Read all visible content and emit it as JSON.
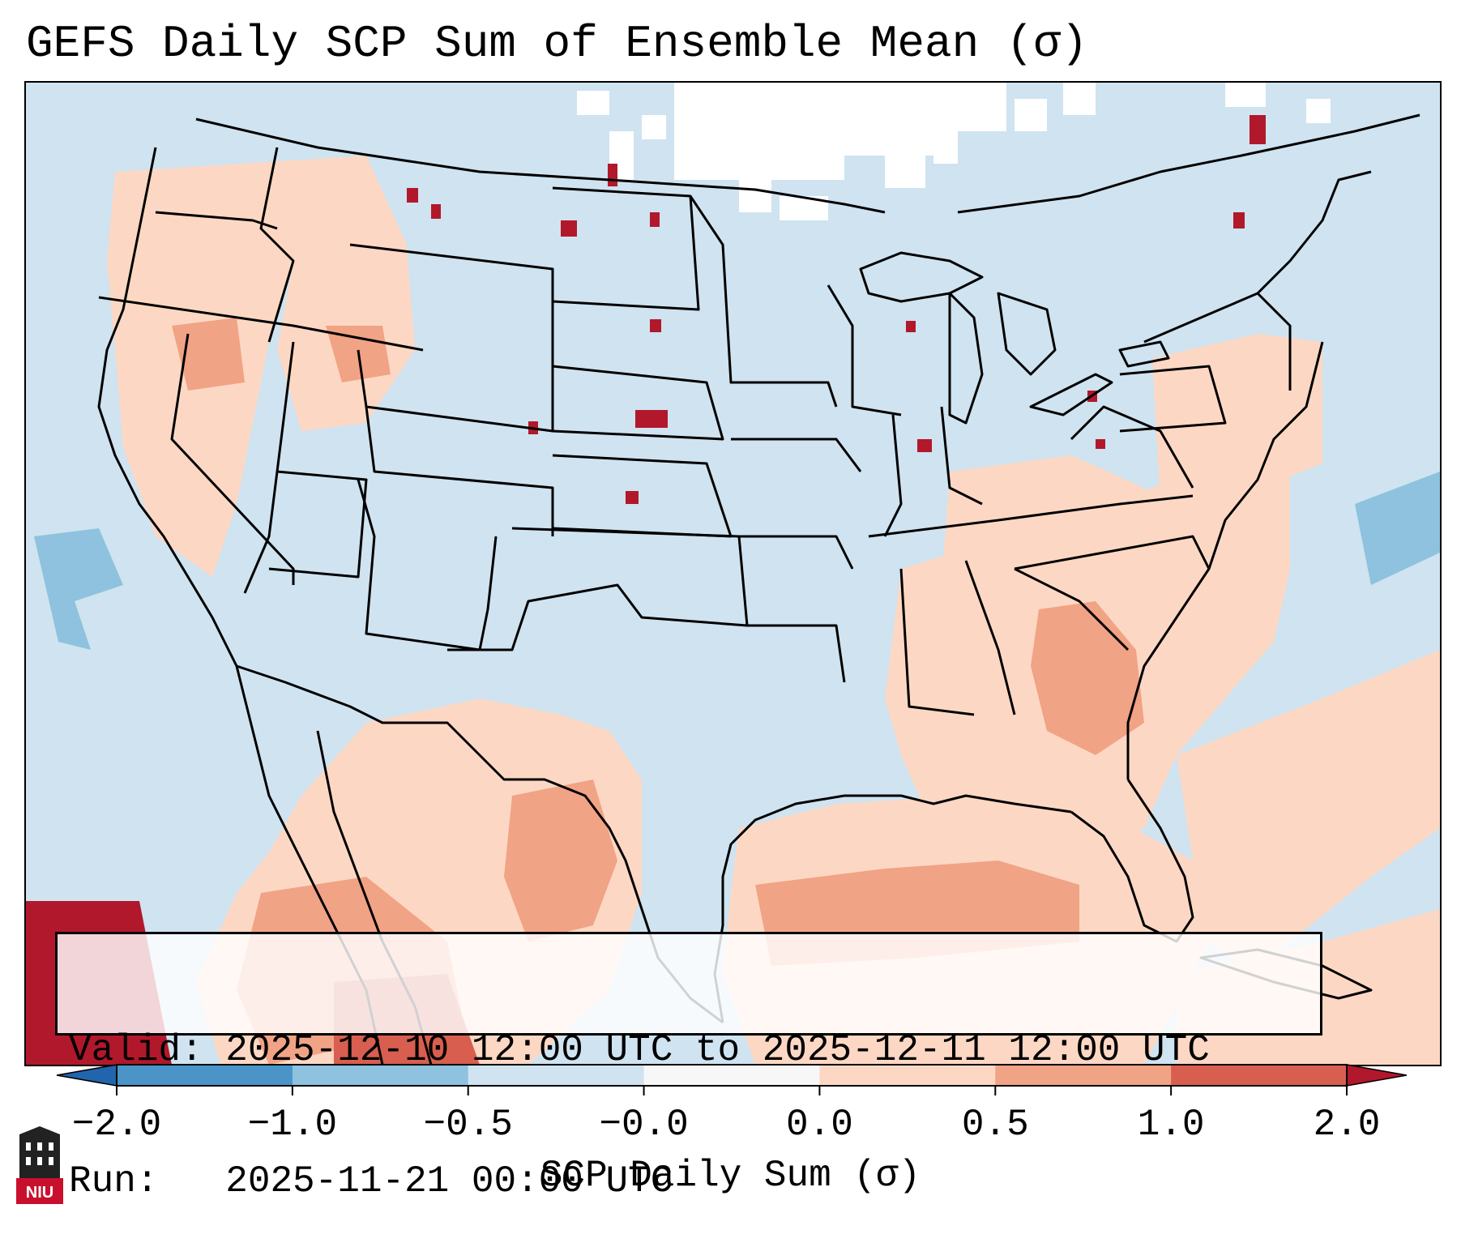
{
  "title": "GEFS Daily SCP Sum of Ensemble Mean (σ)",
  "info": {
    "valid": "Valid: 2025-12-10 12:00 UTC to 2025-12-11 12:00 UTC",
    "run": "Run:   2025-11-21 00:00 UTC"
  },
  "colorbar": {
    "label": "SCP Daily Sum (σ)",
    "tick_labels": [
      "−2.0",
      "−1.0",
      "−0.5",
      "−0.0",
      "0.0",
      "0.5",
      "1.0",
      "2.0"
    ],
    "bins": [
      {
        "lower": -2.0,
        "upper": -1.0,
        "color": "#4a94c8"
      },
      {
        "lower": -1.0,
        "upper": -0.5,
        "color": "#8ec2de"
      },
      {
        "lower": -0.5,
        "upper": -0.0,
        "color": "#cfe3f0"
      },
      {
        "lower": -0.0,
        "upper": 0.0,
        "color": "#f7f7f7"
      },
      {
        "lower": 0.0,
        "upper": 0.5,
        "color": "#fcd8c4"
      },
      {
        "lower": 0.5,
        "upper": 1.0,
        "color": "#f1a385"
      },
      {
        "lower": 1.0,
        "upper": 2.0,
        "color": "#d85e50"
      }
    ],
    "extend_low_color": "#2166ac",
    "extend_high_color": "#b2182b"
  },
  "map_colors": {
    "ocean": "#cfe3f0",
    "missing": "#ffffff",
    "positive_low": "#fcd8c4",
    "positive_mid": "#f1a385",
    "positive_high": "#d85e50",
    "positive_extreme": "#b2182b",
    "negative": "#8ec2de",
    "border": "#000000"
  },
  "logo": {
    "text": "NIU",
    "color": "#c8102e"
  }
}
